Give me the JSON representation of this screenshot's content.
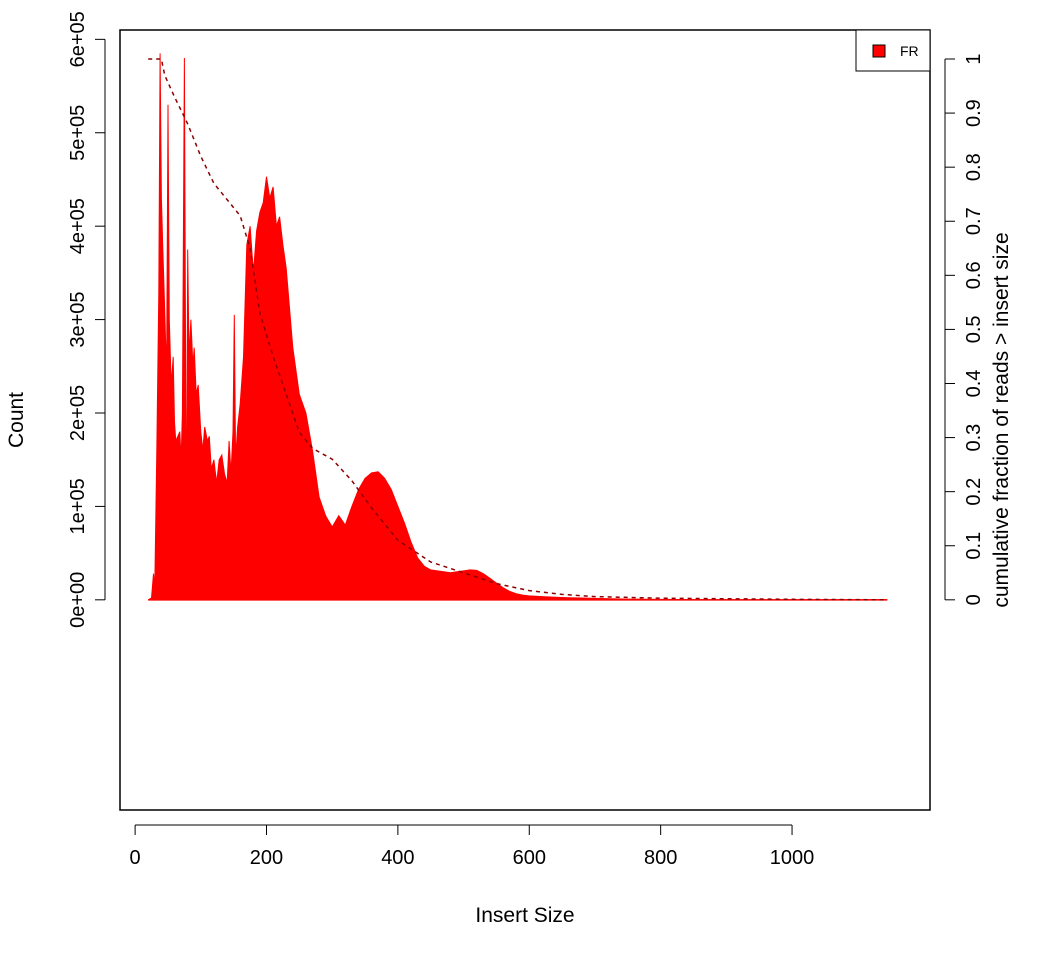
{
  "chart_data": {
    "type": "area",
    "xlabel": "Insert Size",
    "ylabel": "Count",
    "ylabel_right": "cumulative fraction of reads > insert size",
    "xlim": [
      -23,
      1210
    ],
    "ylim": [
      -225000,
      610000
    ],
    "ylim_right": [
      0,
      1
    ],
    "x_ticks": [
      0,
      200,
      400,
      600,
      800,
      1000
    ],
    "x_tick_labels": [
      "0",
      "200",
      "400",
      "600",
      "800",
      "1000"
    ],
    "y_ticks": [
      0,
      100000,
      200000,
      300000,
      400000,
      500000,
      600000
    ],
    "y_tick_labels": [
      "0e+00",
      "1e+05",
      "2e+05",
      "3e+05",
      "4e+05",
      "5e+05",
      "6e+05"
    ],
    "y_right_ticks": [
      0,
      0.1,
      0.2,
      0.3,
      0.4,
      0.5,
      0.6,
      0.7,
      0.8,
      0.9,
      1
    ],
    "y_right_tick_labels": [
      "0",
      "0.1",
      "0.2",
      "0.3",
      "0.4",
      "0.5",
      "0.6",
      "0.7",
      "0.8",
      "0.9",
      "1"
    ],
    "legend": {
      "entries": [
        "FR"
      ],
      "position": "top-right"
    },
    "colors": {
      "histogram": "#ff0000",
      "cumulative": "#8b0000"
    },
    "series": [
      {
        "name": "FR",
        "kind": "histogram",
        "x": [
          20,
          25,
          28,
          30,
          33,
          36,
          38,
          40,
          42,
          45,
          48,
          50,
          52,
          55,
          58,
          60,
          62,
          65,
          68,
          70,
          72,
          75,
          77,
          78,
          80,
          82,
          85,
          88,
          90,
          93,
          96,
          100,
          103,
          106,
          110,
          113,
          116,
          120,
          124,
          128,
          132,
          136,
          140,
          143,
          146,
          149,
          151,
          153,
          156,
          160,
          165,
          170,
          175,
          180,
          185,
          190,
          195,
          200,
          205,
          210,
          215,
          220,
          225,
          230,
          240,
          250,
          260,
          270,
          280,
          290,
          300,
          310,
          320,
          330,
          340,
          350,
          360,
          370,
          380,
          390,
          400,
          410,
          420,
          430,
          440,
          450,
          460,
          470,
          480,
          490,
          500,
          510,
          520,
          530,
          540,
          550,
          560,
          570,
          580,
          590,
          600,
          620,
          640,
          660,
          680,
          700,
          750,
          800,
          850,
          900,
          1000,
          1100,
          1145
        ],
        "y": [
          0,
          2000,
          28000,
          15000,
          160000,
          330000,
          585000,
          430000,
          380000,
          310000,
          240000,
          530000,
          300000,
          230000,
          260000,
          190000,
          170000,
          175000,
          180000,
          150000,
          200000,
          580000,
          230000,
          60000,
          375000,
          260000,
          300000,
          250000,
          270000,
          220000,
          230000,
          180000,
          160000,
          185000,
          170000,
          175000,
          140000,
          150000,
          125000,
          150000,
          155000,
          135000,
          125000,
          170000,
          135000,
          180000,
          305000,
          150000,
          185000,
          210000,
          260000,
          380000,
          400000,
          350000,
          395000,
          415000,
          425000,
          453000,
          430000,
          442000,
          400000,
          410000,
          380000,
          355000,
          270000,
          220000,
          200000,
          160000,
          110000,
          90000,
          78000,
          90000,
          80000,
          100000,
          118000,
          130000,
          136000,
          137000,
          130000,
          118000,
          100000,
          82000,
          62000,
          45000,
          36000,
          32000,
          31000,
          30000,
          29000,
          30000,
          31000,
          32000,
          31500,
          28000,
          23000,
          18000,
          13000,
          9000,
          6500,
          5000,
          4200,
          3500,
          2800,
          2300,
          2000,
          1500,
          800,
          400,
          200,
          100,
          50,
          20,
          0
        ]
      },
      {
        "name": "",
        "kind": "cumulative",
        "x": [
          20,
          40,
          45,
          60,
          80,
          100,
          120,
          140,
          160,
          175,
          190,
          210,
          230,
          250,
          270,
          300,
          330,
          360,
          400,
          450,
          500,
          550,
          600,
          650,
          700,
          800,
          1000,
          1145
        ],
        "y": [
          1.0,
          1.0,
          0.97,
          0.93,
          0.88,
          0.82,
          0.77,
          0.74,
          0.71,
          0.65,
          0.53,
          0.45,
          0.38,
          0.31,
          0.28,
          0.26,
          0.22,
          0.17,
          0.11,
          0.07,
          0.05,
          0.03,
          0.017,
          0.01,
          0.006,
          0.003,
          0.001,
          0.0
        ]
      }
    ]
  }
}
